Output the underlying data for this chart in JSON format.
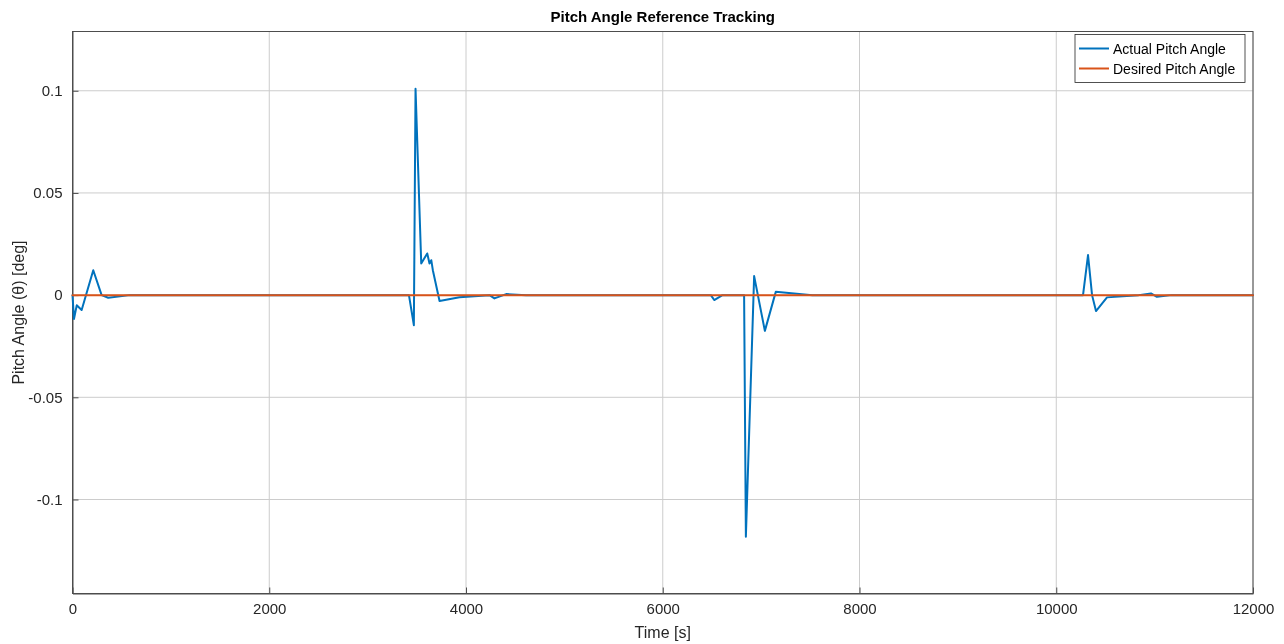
{
  "chart_data": {
    "type": "line",
    "title": "Pitch Angle Reference Tracking",
    "xlabel": "Time [s]",
    "ylabel": "Pitch Angle (θ)  [deg]",
    "xlim": [
      0,
      12000
    ],
    "xticks": [
      0,
      2000,
      4000,
      6000,
      8000,
      10000,
      12000
    ],
    "ylim": [
      -0.146,
      0.129
    ],
    "yticks": [
      -0.1,
      -0.05,
      0,
      0.05,
      0.1
    ],
    "grid": true,
    "legend": "top right",
    "line_style": "solid",
    "marker": "none",
    "series": [
      {
        "name": "Actual Pitch Angle",
        "color": "#0072bd",
        "x": [
          0,
          15,
          43,
          93,
          211,
          296,
          363,
          584,
          3420,
          3470,
          3487,
          3545,
          3606,
          3629,
          3647,
          3663,
          3731,
          3934,
          4239,
          4289,
          4408,
          4611,
          6489,
          6523,
          6607,
          6810,
          6827,
          6845,
          6929,
          7038,
          7149,
          7521,
          10272,
          10323,
          10364,
          10404,
          10516,
          10838,
          10963,
          11023,
          11173,
          12000
        ],
        "values": [
          0,
          -0.0117,
          -0.005,
          -0.0073,
          0.0122,
          0,
          -0.0013,
          0,
          0,
          -0.0147,
          0.101,
          0.0155,
          0.0204,
          0.0155,
          0.0171,
          0.0122,
          -0.0029,
          -0.001,
          0,
          -0.0016,
          0.0005,
          0,
          0,
          -0.0024,
          0,
          0,
          0,
          -0.1182,
          0.0093,
          -0.0175,
          0.0016,
          0,
          0,
          0.0196,
          0,
          -0.0078,
          -0.0011,
          0,
          0.0008,
          -0.0008,
          0,
          0
        ]
      },
      {
        "name": "Desired Pitch Angle",
        "color": "#d95319",
        "x": [
          0,
          12000
        ],
        "values": [
          0,
          0
        ]
      }
    ]
  }
}
